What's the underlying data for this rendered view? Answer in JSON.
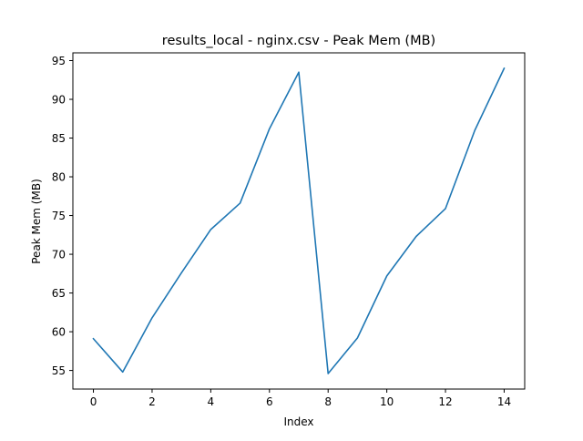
{
  "chart_data": {
    "type": "line",
    "title": "results_local - nginx.csv - Peak Mem (MB)",
    "xlabel": "Index",
    "ylabel": "Peak Mem (MB)",
    "xlim": [
      -0.7,
      14.7
    ],
    "ylim": [
      52.6,
      96.0
    ],
    "xticks": [
      0,
      2,
      4,
      6,
      8,
      10,
      12,
      14
    ],
    "yticks": [
      55,
      60,
      65,
      70,
      75,
      80,
      85,
      90,
      95
    ],
    "grid": false,
    "legend": "none",
    "series": [
      {
        "color": "#1f77b4",
        "x": [
          0,
          1,
          2,
          3,
          4,
          5,
          6,
          7,
          8,
          9,
          10,
          11,
          12,
          13,
          14
        ],
        "values": [
          59.1,
          54.8,
          61.8,
          67.6,
          73.2,
          76.6,
          86.2,
          93.5,
          54.6,
          59.2,
          67.2,
          72.3,
          75.9,
          86.0,
          94.0
        ]
      }
    ]
  }
}
